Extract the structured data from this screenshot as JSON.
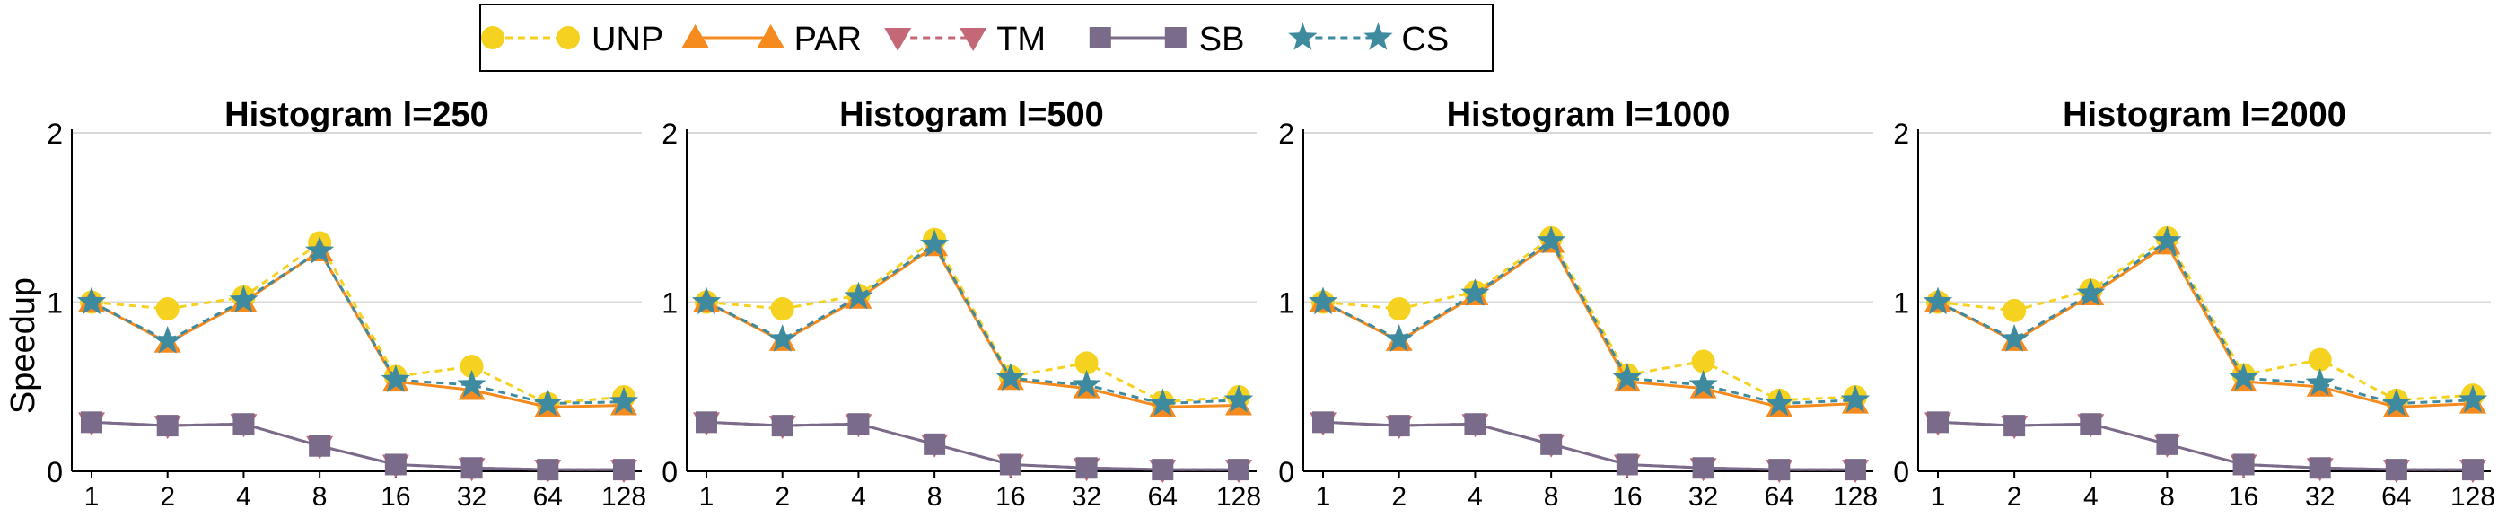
{
  "legend": {
    "placement": "top-center",
    "entries": [
      {
        "name": "UNP",
        "color": "#f5d21f",
        "marker": "circle",
        "dash": true
      },
      {
        "name": "PAR",
        "color": "#f58a1f",
        "marker": "triangle-up",
        "dash": false
      },
      {
        "name": "TM",
        "color": "#c46878",
        "marker": "triangle-down",
        "dash": true
      },
      {
        "name": "SB",
        "color": "#7a6b8a",
        "marker": "square",
        "dash": false
      },
      {
        "name": "CS",
        "color": "#3e8a9e",
        "marker": "star",
        "dash": true
      }
    ]
  },
  "ylabel": "Speedup",
  "chart_data": [
    {
      "type": "line",
      "title": "Histogram l=250",
      "categories": [
        "1",
        "2",
        "4",
        "8",
        "16",
        "32",
        "64",
        "128"
      ],
      "ylim": [
        0,
        2
      ],
      "yticks": [
        "0",
        "1",
        "2"
      ],
      "grid": true,
      "series": [
        {
          "name": "UNP",
          "values": [
            1.0,
            0.96,
            1.03,
            1.35,
            0.56,
            0.62,
            0.4,
            0.44
          ]
        },
        {
          "name": "PAR",
          "values": [
            1.0,
            0.76,
            1.0,
            1.3,
            0.53,
            0.48,
            0.38,
            0.39
          ]
        },
        {
          "name": "TM",
          "values": [
            0.29,
            0.27,
            0.28,
            0.15,
            0.04,
            0.02,
            0.01,
            0.01
          ]
        },
        {
          "name": "SB",
          "values": [
            0.29,
            0.27,
            0.28,
            0.15,
            0.04,
            0.02,
            0.01,
            0.01
          ]
        },
        {
          "name": "CS",
          "values": [
            1.0,
            0.77,
            1.01,
            1.3,
            0.54,
            0.51,
            0.4,
            0.41
          ]
        }
      ]
    },
    {
      "type": "line",
      "title": "Histogram l=500",
      "categories": [
        "1",
        "2",
        "4",
        "8",
        "16",
        "32",
        "64",
        "128"
      ],
      "ylim": [
        0,
        2
      ],
      "yticks": [
        "0",
        "1",
        "2"
      ],
      "grid": true,
      "series": [
        {
          "name": "UNP",
          "values": [
            1.0,
            0.96,
            1.04,
            1.37,
            0.56,
            0.64,
            0.41,
            0.44
          ]
        },
        {
          "name": "PAR",
          "values": [
            1.0,
            0.77,
            1.02,
            1.33,
            0.54,
            0.49,
            0.38,
            0.39
          ]
        },
        {
          "name": "TM",
          "values": [
            0.29,
            0.27,
            0.28,
            0.16,
            0.04,
            0.02,
            0.01,
            0.01
          ]
        },
        {
          "name": "SB",
          "values": [
            0.29,
            0.27,
            0.28,
            0.16,
            0.04,
            0.02,
            0.01,
            0.01
          ]
        },
        {
          "name": "CS",
          "values": [
            1.0,
            0.78,
            1.03,
            1.34,
            0.55,
            0.51,
            0.4,
            0.42
          ]
        }
      ]
    },
    {
      "type": "line",
      "title": "Histogram l=1000",
      "categories": [
        "1",
        "2",
        "4",
        "8",
        "16",
        "32",
        "64",
        "128"
      ],
      "ylim": [
        0,
        2
      ],
      "yticks": [
        "0",
        "1",
        "2"
      ],
      "grid": true,
      "series": [
        {
          "name": "UNP",
          "values": [
            1.0,
            0.96,
            1.06,
            1.38,
            0.57,
            0.65,
            0.42,
            0.44
          ]
        },
        {
          "name": "PAR",
          "values": [
            1.0,
            0.77,
            1.04,
            1.35,
            0.53,
            0.49,
            0.38,
            0.4
          ]
        },
        {
          "name": "TM",
          "values": [
            0.29,
            0.27,
            0.28,
            0.16,
            0.04,
            0.02,
            0.01,
            0.01
          ]
        },
        {
          "name": "SB",
          "values": [
            0.29,
            0.27,
            0.28,
            0.16,
            0.04,
            0.02,
            0.01,
            0.01
          ]
        },
        {
          "name": "CS",
          "values": [
            1.0,
            0.78,
            1.05,
            1.36,
            0.55,
            0.51,
            0.4,
            0.42
          ]
        }
      ]
    },
    {
      "type": "line",
      "title": "Histogram l=2000",
      "categories": [
        "1",
        "2",
        "4",
        "8",
        "16",
        "32",
        "64",
        "128"
      ],
      "ylim": [
        0,
        2
      ],
      "yticks": [
        "0",
        "1",
        "2"
      ],
      "grid": true,
      "series": [
        {
          "name": "UNP",
          "values": [
            1.0,
            0.95,
            1.07,
            1.38,
            0.57,
            0.66,
            0.42,
            0.45
          ]
        },
        {
          "name": "PAR",
          "values": [
            1.0,
            0.77,
            1.04,
            1.34,
            0.53,
            0.5,
            0.38,
            0.4
          ]
        },
        {
          "name": "TM",
          "values": [
            0.29,
            0.27,
            0.28,
            0.16,
            0.04,
            0.02,
            0.01,
            0.01
          ]
        },
        {
          "name": "SB",
          "values": [
            0.29,
            0.27,
            0.28,
            0.16,
            0.04,
            0.02,
            0.01,
            0.01
          ]
        },
        {
          "name": "CS",
          "values": [
            1.0,
            0.78,
            1.05,
            1.36,
            0.55,
            0.52,
            0.4,
            0.42
          ]
        }
      ]
    }
  ]
}
